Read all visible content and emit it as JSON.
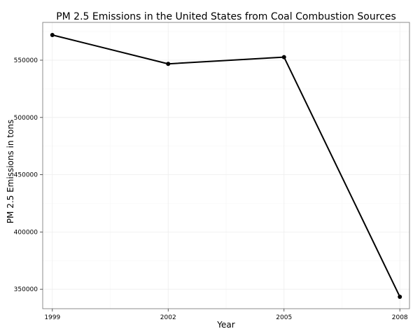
{
  "chart_data": {
    "type": "line",
    "title": "PM 2.5 Emissions in the United States from Coal Combustion Sources",
    "xlabel": "Year",
    "ylabel": "PM 2.5 Emissions in tons",
    "x": [
      1999,
      2002,
      2005,
      2008
    ],
    "values": [
      572000,
      546800,
      552700,
      343400
    ],
    "xlim": [
      1998.75,
      2008.25
    ],
    "ylim": [
      333000,
      583000
    ],
    "x_ticks": [
      1999,
      2002,
      2005,
      2008
    ],
    "x_tick_labels": [
      "1999",
      "2002",
      "2005",
      "2008"
    ],
    "y_ticks": [
      350000,
      400000,
      450000,
      500000,
      550000
    ],
    "y_tick_labels": [
      "350000",
      "400000",
      "450000",
      "500000",
      "550000"
    ],
    "grid": true,
    "line_color": "#000000"
  }
}
